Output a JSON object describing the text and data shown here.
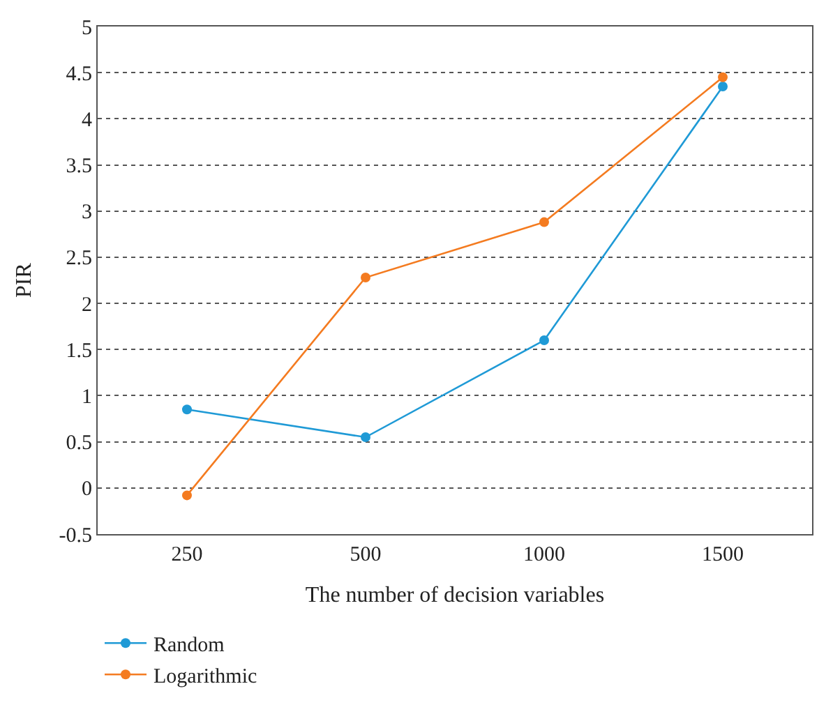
{
  "chart_data": {
    "type": "line",
    "xlabel": "The number of decision variables",
    "ylabel": "PIR",
    "categories": [
      "250",
      "500",
      "1000",
      "1500"
    ],
    "series": [
      {
        "name": "Random",
        "color": "#1f9ad6",
        "values": [
          0.85,
          0.55,
          1.6,
          4.35
        ]
      },
      {
        "name": "Logarithmic",
        "color": "#f47b20",
        "values": [
          -0.08,
          2.28,
          2.88,
          4.45
        ]
      }
    ],
    "ylim": [
      -0.5,
      5
    ],
    "yticks": [
      -0.5,
      0,
      0.5,
      1,
      1.5,
      2,
      2.5,
      3,
      3.5,
      4,
      4.5,
      5
    ],
    "grid": "y",
    "legend": "bottom left",
    "marker": "circle",
    "line_style": "solid"
  }
}
